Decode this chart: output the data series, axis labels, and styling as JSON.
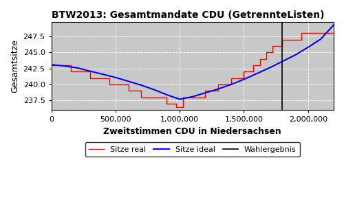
{
  "title": "BTW2013: Gesamtmandate CDU (GetrennteListen)",
  "xlabel": "Zweitstimmen CDU in Niedersachsen",
  "ylabel": "Gesamtsitze",
  "fig_bg_color": "#ffffff",
  "axes_bg_color": "#c8c8c8",
  "wahlergebnis_x": 1800000,
  "xlim": [
    0,
    2200000
  ],
  "ylim": [
    236.0,
    249.8
  ],
  "yticks": [
    237.5,
    240.0,
    242.5,
    245.0,
    247.5
  ],
  "xticks": [
    0,
    500000,
    1000000,
    1500000,
    2000000
  ],
  "ideal_x": [
    0,
    100000,
    200000,
    300000,
    400000,
    500000,
    600000,
    700000,
    800000,
    900000,
    1000000,
    1100000,
    1200000,
    1300000,
    1400000,
    1500000,
    1600000,
    1700000,
    1800000,
    1900000,
    2000000,
    2100000,
    2200000
  ],
  "ideal_y": [
    243.1,
    242.9,
    242.6,
    242.1,
    241.6,
    241.1,
    240.5,
    239.9,
    239.2,
    238.4,
    237.7,
    238.1,
    238.7,
    239.3,
    240.0,
    240.8,
    241.7,
    242.6,
    243.6,
    244.6,
    245.8,
    247.1,
    249.3
  ],
  "step_x": [
    0,
    150000,
    150000,
    300000,
    300000,
    450000,
    450000,
    600000,
    600000,
    700000,
    700000,
    800000,
    800000,
    900000,
    900000,
    975000,
    975000,
    1025000,
    1025000,
    1100000,
    1100000,
    1200000,
    1200000,
    1300000,
    1300000,
    1400000,
    1400000,
    1500000,
    1500000,
    1575000,
    1575000,
    1625000,
    1625000,
    1675000,
    1675000,
    1725000,
    1725000,
    1800000,
    1800000,
    1875000,
    1875000,
    1950000,
    1950000,
    2050000,
    2050000,
    2200000
  ],
  "step_y": [
    243,
    243,
    242,
    242,
    241,
    241,
    240,
    240,
    239,
    239,
    238,
    238,
    238,
    238,
    237,
    237,
    236.5,
    236.5,
    238,
    238,
    238,
    238,
    239,
    239,
    240,
    240,
    241,
    241,
    242,
    242,
    243,
    243,
    244,
    244,
    245,
    245,
    246,
    246,
    247,
    247,
    247,
    247,
    248,
    248,
    248,
    248
  ],
  "legend_labels": [
    "Sitze real",
    "Sitze ideal",
    "Wahlergebnis"
  ],
  "legend_colors": [
    "red",
    "blue",
    "black"
  ]
}
